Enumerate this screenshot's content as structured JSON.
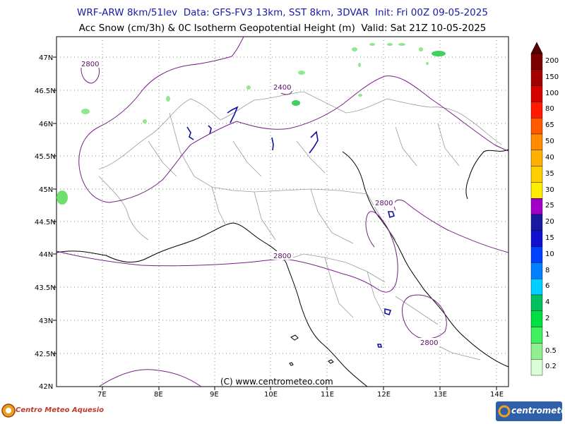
{
  "header": {
    "line1": "WRF-ARW 8km/51lev  Data: GFS-FV3 13km, SST 8km, 3DVAR  Init: Fri 00Z 09-05-2025",
    "line2": "Acc Snow (cm/3h) & 0C Isotherm Geopotential Height (m)  Valid: Sat 21Z 10-05-2025"
  },
  "map": {
    "lat_labels": [
      "47N",
      "46.5N",
      "46N",
      "45.5N",
      "45N",
      "44.5N",
      "44N",
      "43.5N",
      "43N",
      "42.5N",
      "42N"
    ],
    "lon_labels": [
      "7E",
      "8E",
      "9E",
      "10E",
      "11E",
      "12E",
      "13E",
      "14E"
    ],
    "contour_labels": [
      "2800",
      "2400",
      "2800",
      "2800",
      "2800"
    ],
    "copyright": "(C) www.centrometeo.com",
    "colors": {
      "contour": "#7a1f8a",
      "admin": "#9a9a9a",
      "coast": "#000000",
      "lakes": "#1010a0",
      "snow_light": "#8ee88e"
    }
  },
  "colorbar": {
    "levels": [
      "200",
      "150",
      "100",
      "80",
      "65",
      "50",
      "40",
      "35",
      "30",
      "25",
      "20",
      "15",
      "10",
      "8",
      "6",
      "4",
      "2",
      "1",
      "0.5",
      "0.2"
    ],
    "colors": [
      "#7a0000",
      "#a50000",
      "#d40000",
      "#ff1a00",
      "#ff5a00",
      "#ff8c00",
      "#ffb000",
      "#ffd000",
      "#ffee00",
      "#a000c8",
      "#1a1aa0",
      "#1010d0",
      "#0040ff",
      "#0080ff",
      "#00d0ff",
      "#00c060",
      "#00e040",
      "#40f060",
      "#90f090",
      "#d8ffd8"
    ]
  },
  "logos": {
    "left": "Centro Meteo Aquesio",
    "right": "centrometeo"
  }
}
